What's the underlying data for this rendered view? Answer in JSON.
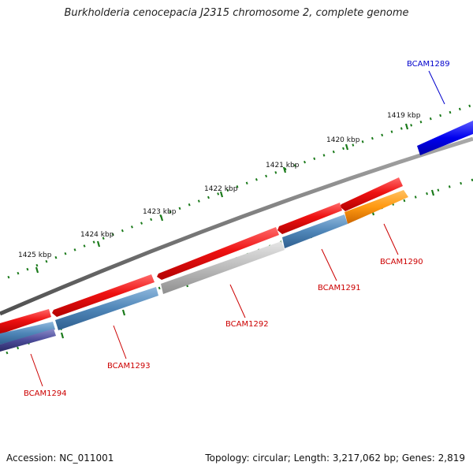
{
  "title": "Burkholderia cenocepacia J2315 chromosome 2, complete genome",
  "footer": {
    "accession": "Accession: NC_011001",
    "summary": "Topology: circular; Length: 3,217,062 bp; Genes: 2,819"
  },
  "kbp_labels": [
    "1419 kbp",
    "1420 kbp",
    "1421 kbp",
    "1422 kbp",
    "1423 kbp",
    "1424 kbp",
    "1425 kbp"
  ],
  "genes": [
    {
      "name": "BCAM1289",
      "color": "#0000cc"
    },
    {
      "name": "BCAM1290",
      "color": "#cc0000"
    },
    {
      "name": "BCAM1291",
      "color": "#cc0000"
    },
    {
      "name": "BCAM1292",
      "color": "#cc0000"
    },
    {
      "name": "BCAM1293",
      "color": "#cc0000"
    },
    {
      "name": "BCAM1294",
      "color": "#cc0000"
    }
  ],
  "colors": {
    "backbone": "#7a7a7a",
    "forward_feature": "#ee1111",
    "blue_feature": "#0000ee",
    "steelblue_feature": "#4f86b8",
    "orange_feature": "#ff9911",
    "gray_feature": "#bbbbbb",
    "purple_feature": "#4b4b99",
    "tick": "#1a7a1a"
  }
}
